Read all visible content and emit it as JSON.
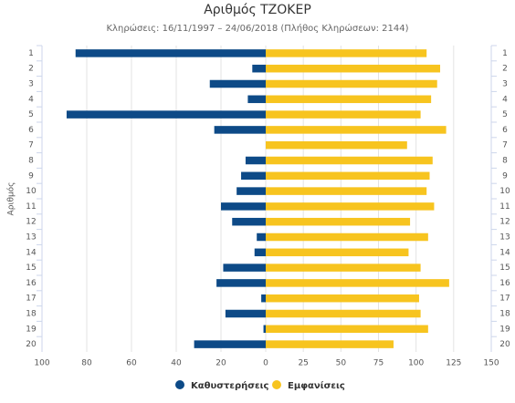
{
  "chart_data": {
    "type": "bar",
    "orientation": "horizontal",
    "title": "Αριθμός ΤΖΟΚΕΡ",
    "subtitle": "Κληρώσεις: 16/11/1997 – 24/06/2018 (Πλήθος Κληρώσεων: 2144)",
    "y_label": "Αριθμός",
    "categories": [
      "1",
      "2",
      "3",
      "4",
      "5",
      "6",
      "7",
      "8",
      "9",
      "10",
      "11",
      "12",
      "13",
      "14",
      "15",
      "16",
      "17",
      "18",
      "19",
      "20"
    ],
    "xlim": [
      100,
      0
    ],
    "xticks": [
      100,
      80,
      60,
      40,
      20,
      0
    ],
    "x2lim": [
      0,
      150
    ],
    "x2ticks": [
      25,
      50,
      75,
      100,
      125,
      150
    ],
    "grid": true,
    "legend": "bottom",
    "series": [
      {
        "name": "Καθυστερήσεις",
        "color": "#0d4a87",
        "axis": "x",
        "values": [
          85,
          6,
          25,
          8,
          89,
          23,
          0,
          9,
          11,
          13,
          20,
          15,
          4,
          5,
          19,
          22,
          2,
          18,
          1,
          32
        ]
      },
      {
        "name": "Εμφανίσεις",
        "color": "#f7c41f",
        "axis": "x2",
        "values": [
          107,
          116,
          114,
          110,
          103,
          120,
          94,
          111,
          109,
          107,
          112,
          96,
          108,
          95,
          103,
          122,
          102,
          103,
          108,
          85
        ]
      }
    ]
  }
}
